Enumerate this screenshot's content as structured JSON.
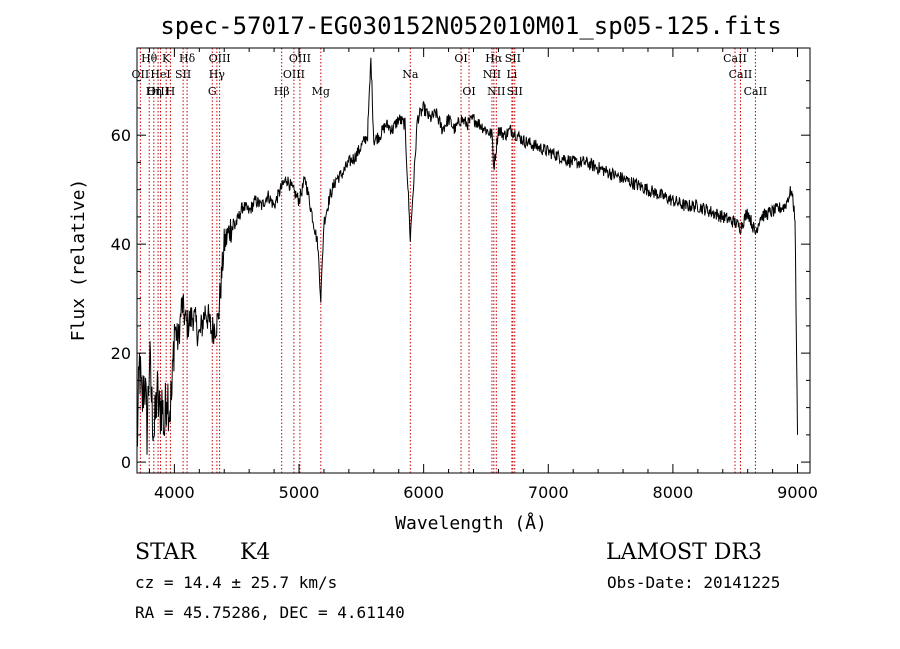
{
  "chart_data": {
    "type": "line",
    "title": "spec-57017-EG030152N052010M01_sp05-125.fits",
    "xlabel": "Wavelength (Å)",
    "ylabel": "Flux (relative)",
    "xlim": [
      3700,
      9100
    ],
    "ylim": [
      -2,
      76
    ],
    "x_ticks": [
      4000,
      5000,
      6000,
      7000,
      8000,
      9000
    ],
    "y_ticks": [
      0,
      20,
      40,
      60
    ],
    "grid": false,
    "line_color": "#000000",
    "marker_color": "#cc0000",
    "lines": [
      {
        "label": "Hθ",
        "x": 3798,
        "row": 0
      },
      {
        "label": "OII",
        "x": 3727,
        "row": 1
      },
      {
        "label": "OIII",
        "x": 3869,
        "row": 2
      },
      {
        "label": "HeI",
        "x": 3889,
        "row": 1
      },
      {
        "label": "K",
        "x": 3934,
        "row": 0
      },
      {
        "label": "Hη",
        "x": 3835,
        "row": 2
      },
      {
        "label": "SII",
        "x": 4070,
        "row": 1
      },
      {
        "label": "H",
        "x": 3968,
        "row": 2
      },
      {
        "label": "Hδ",
        "x": 4102,
        "row": 0
      },
      {
        "label": "OIII",
        "x": 4363,
        "row": 0
      },
      {
        "label": "Hγ",
        "x": 4341,
        "row": 1
      },
      {
        "label": "G",
        "x": 4304,
        "row": 2
      },
      {
        "label": "Hβ",
        "x": 4861,
        "row": 2
      },
      {
        "label": "OIII",
        "x": 5007,
        "row": 0
      },
      {
        "label": "OIII",
        "x": 4959,
        "row": 1
      },
      {
        "label": "Mg",
        "x": 5175,
        "row": 2
      },
      {
        "label": "Na",
        "x": 5893,
        "row": 1
      },
      {
        "label": "OI",
        "x": 6300,
        "row": 0
      },
      {
        "label": "OI",
        "x": 6364,
        "row": 2
      },
      {
        "label": "Hα",
        "x": 6563,
        "row": 0
      },
      {
        "label": "SII",
        "x": 6716,
        "row": 0
      },
      {
        "label": "NII",
        "x": 6548,
        "row": 1
      },
      {
        "label": "Li",
        "x": 6708,
        "row": 1
      },
      {
        "label": "NII",
        "x": 6583,
        "row": 2
      },
      {
        "label": "SII",
        "x": 6731,
        "row": 2
      },
      {
        "label": "CaII",
        "x": 8498,
        "row": 0
      },
      {
        "label": "CaII",
        "x": 8542,
        "row": 1
      },
      {
        "label": "CaII",
        "x": 8662,
        "row": 2
      }
    ],
    "series": [
      {
        "x": [
          3700,
          3720,
          3740,
          3760,
          3780,
          3800,
          3820,
          3840,
          3860,
          3880,
          3900,
          3920,
          3940,
          3960,
          3980,
          4000,
          4030,
          4060,
          4100,
          4150,
          4200,
          4250,
          4300,
          4350,
          4400,
          4450,
          4500,
          4550,
          4600,
          4650,
          4700,
          4750,
          4800,
          4850,
          4900,
          4950,
          5000,
          5050,
          5100,
          5150,
          5175,
          5200,
          5250,
          5300,
          5350,
          5400,
          5450,
          5500,
          5550,
          5577,
          5600,
          5650,
          5700,
          5750,
          5800,
          5850,
          5893,
          5950,
          6000,
          6050,
          6100,
          6150,
          6200,
          6250,
          6300,
          6350,
          6400,
          6450,
          6500,
          6550,
          6563,
          6600,
          6650,
          6700,
          6800,
          6900,
          7000,
          7100,
          7200,
          7300,
          7400,
          7500,
          7600,
          7700,
          7800,
          7900,
          8000,
          8100,
          8200,
          8300,
          8400,
          8498,
          8542,
          8600,
          8662,
          8700,
          8800,
          8900,
          8950,
          8980,
          9000
        ],
        "y": [
          2,
          18,
          10,
          16,
          6,
          19,
          10,
          5,
          13,
          9,
          11,
          6,
          14,
          10,
          12,
          25,
          22,
          29,
          25,
          27,
          23,
          28,
          24,
          26,
          40,
          43,
          44,
          47,
          46,
          48,
          47,
          49,
          47,
          50,
          52,
          50,
          48,
          52,
          46,
          40,
          30,
          44,
          49,
          52,
          53,
          55,
          56,
          58,
          60,
          74,
          59,
          60,
          62,
          61,
          63,
          62,
          41,
          63,
          65,
          63,
          64,
          61,
          63,
          61,
          63,
          62,
          63,
          62,
          61,
          60,
          54,
          61,
          60,
          61,
          59,
          58,
          57,
          56,
          55,
          55,
          54,
          53,
          52,
          51,
          50,
          49,
          48,
          47,
          47,
          46,
          45,
          44,
          43,
          46,
          42,
          45,
          46,
          47,
          50,
          45,
          5
        ]
      }
    ]
  },
  "info": {
    "object_type": "STAR",
    "subclass": "K4",
    "survey": "LAMOST DR3",
    "redshift_line": "cz =  14.4 ± 25.7 km/s",
    "obs_date": "Obs-Date: 20141225",
    "coords": "RA =  45.75286, DEC =   4.61140"
  }
}
